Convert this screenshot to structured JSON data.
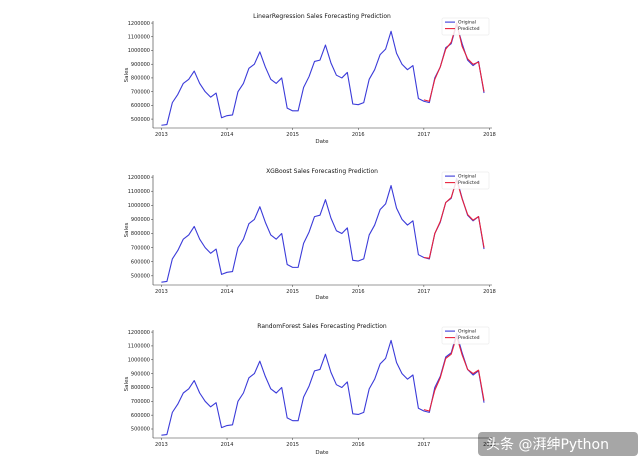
{
  "watermark": {
    "text": "头条 @湃绅Python"
  },
  "chart_data": [
    {
      "type": "line",
      "title": "LinearRegression Sales Forecasting Prediction",
      "xlabel": "Date",
      "ylabel": "Sales",
      "xlim": [
        "2012-11-15",
        "2018-01-15"
      ],
      "ylim": [
        435000,
        1215000
      ],
      "x_ticks": [
        "2013",
        "2014",
        "2015",
        "2016",
        "2017",
        "2018"
      ],
      "y_ticks": [
        500000,
        600000,
        700000,
        800000,
        900000,
        1000000,
        1100000,
        1200000
      ],
      "legend": "top-right",
      "series": [
        {
          "name": "Original",
          "color": "#3b3bd9",
          "x": [
            "2013-01",
            "2013-02",
            "2013-03",
            "2013-04",
            "2013-05",
            "2013-06",
            "2013-07",
            "2013-08",
            "2013-09",
            "2013-10",
            "2013-11",
            "2013-12",
            "2014-01",
            "2014-02",
            "2014-03",
            "2014-04",
            "2014-05",
            "2014-06",
            "2014-07",
            "2014-08",
            "2014-09",
            "2014-10",
            "2014-11",
            "2014-12",
            "2015-01",
            "2015-02",
            "2015-03",
            "2015-04",
            "2015-05",
            "2015-06",
            "2015-07",
            "2015-08",
            "2015-09",
            "2015-10",
            "2015-11",
            "2015-12",
            "2016-01",
            "2016-02",
            "2016-03",
            "2016-04",
            "2016-05",
            "2016-06",
            "2016-07",
            "2016-08",
            "2016-09",
            "2016-10",
            "2016-11",
            "2016-12",
            "2017-01",
            "2017-02",
            "2017-03",
            "2017-04",
            "2017-05",
            "2017-06",
            "2017-07",
            "2017-08",
            "2017-09",
            "2017-10",
            "2017-11",
            "2017-12"
          ],
          "y": [
            455000,
            460000,
            620000,
            680000,
            760000,
            790000,
            850000,
            760000,
            700000,
            660000,
            690000,
            510000,
            525000,
            530000,
            700000,
            760000,
            870000,
            900000,
            990000,
            880000,
            790000,
            760000,
            800000,
            580000,
            560000,
            560000,
            730000,
            810000,
            920000,
            930000,
            1040000,
            910000,
            820000,
            800000,
            840000,
            610000,
            605000,
            620000,
            790000,
            860000,
            970000,
            1010000,
            1140000,
            980000,
            900000,
            860000,
            890000,
            650000,
            630000,
            620000,
            800000,
            880000,
            1020000,
            1050000,
            1190000,
            1050000,
            930000,
            890000,
            920000,
            690000
          ]
        },
        {
          "name": "Predicted",
          "color": "#e8213a",
          "x": [
            "2017-01",
            "2017-02",
            "2017-03",
            "2017-04",
            "2017-05",
            "2017-06",
            "2017-07",
            "2017-08",
            "2017-09",
            "2017-10",
            "2017-11",
            "2017-12"
          ],
          "y": [
            640000,
            630000,
            790000,
            880000,
            1010000,
            1060000,
            1200000,
            1030000,
            940000,
            900000,
            915000,
            700000
          ]
        }
      ]
    },
    {
      "type": "line",
      "title": "XGBoost Sales Forecasting Prediction",
      "xlabel": "Date",
      "ylabel": "Sales",
      "xlim": [
        "2012-11-15",
        "2018-01-15"
      ],
      "ylim": [
        435000,
        1215000
      ],
      "x_ticks": [
        "2013",
        "2014",
        "2015",
        "2016",
        "2017",
        "2018"
      ],
      "y_ticks": [
        500000,
        600000,
        700000,
        800000,
        900000,
        1000000,
        1100000,
        1200000
      ],
      "legend": "top-right",
      "series": [
        {
          "name": "Original",
          "color": "#3b3bd9",
          "x": [
            "2013-01",
            "2013-02",
            "2013-03",
            "2013-04",
            "2013-05",
            "2013-06",
            "2013-07",
            "2013-08",
            "2013-09",
            "2013-10",
            "2013-11",
            "2013-12",
            "2014-01",
            "2014-02",
            "2014-03",
            "2014-04",
            "2014-05",
            "2014-06",
            "2014-07",
            "2014-08",
            "2014-09",
            "2014-10",
            "2014-11",
            "2014-12",
            "2015-01",
            "2015-02",
            "2015-03",
            "2015-04",
            "2015-05",
            "2015-06",
            "2015-07",
            "2015-08",
            "2015-09",
            "2015-10",
            "2015-11",
            "2015-12",
            "2016-01",
            "2016-02",
            "2016-03",
            "2016-04",
            "2016-05",
            "2016-06",
            "2016-07",
            "2016-08",
            "2016-09",
            "2016-10",
            "2016-11",
            "2016-12",
            "2017-01",
            "2017-02",
            "2017-03",
            "2017-04",
            "2017-05",
            "2017-06",
            "2017-07",
            "2017-08",
            "2017-09",
            "2017-10",
            "2017-11",
            "2017-12"
          ],
          "y": [
            455000,
            460000,
            620000,
            680000,
            760000,
            790000,
            850000,
            760000,
            700000,
            660000,
            690000,
            510000,
            525000,
            530000,
            700000,
            760000,
            870000,
            900000,
            990000,
            880000,
            790000,
            760000,
            800000,
            580000,
            560000,
            560000,
            730000,
            810000,
            920000,
            930000,
            1040000,
            910000,
            820000,
            800000,
            840000,
            610000,
            605000,
            620000,
            790000,
            860000,
            970000,
            1010000,
            1140000,
            980000,
            900000,
            860000,
            890000,
            650000,
            630000,
            620000,
            800000,
            880000,
            1020000,
            1050000,
            1190000,
            1050000,
            930000,
            890000,
            920000,
            690000
          ]
        },
        {
          "name": "Predicted",
          "color": "#e8213a",
          "x": [
            "2017-01",
            "2017-02",
            "2017-03",
            "2017-04",
            "2017-05",
            "2017-06",
            "2017-07",
            "2017-08",
            "2017-09",
            "2017-10",
            "2017-11",
            "2017-12"
          ],
          "y": [
            630000,
            625000,
            800000,
            885000,
            1020000,
            1055000,
            1180000,
            1045000,
            935000,
            895000,
            920000,
            700000
          ]
        }
      ]
    },
    {
      "type": "line",
      "title": "RandomForest Sales Forecasting Prediction",
      "xlabel": "Date",
      "ylabel": "Sales",
      "xlim": [
        "2012-11-15",
        "2018-01-15"
      ],
      "ylim": [
        435000,
        1215000
      ],
      "x_ticks": [
        "2013",
        "2014",
        "2015",
        "2016",
        "2017",
        "2018"
      ],
      "y_ticks": [
        500000,
        600000,
        700000,
        800000,
        900000,
        1000000,
        1100000,
        1200000
      ],
      "legend": "top-right",
      "series": [
        {
          "name": "Original",
          "color": "#3b3bd9",
          "x": [
            "2013-01",
            "2013-02",
            "2013-03",
            "2013-04",
            "2013-05",
            "2013-06",
            "2013-07",
            "2013-08",
            "2013-09",
            "2013-10",
            "2013-11",
            "2013-12",
            "2014-01",
            "2014-02",
            "2014-03",
            "2014-04",
            "2014-05",
            "2014-06",
            "2014-07",
            "2014-08",
            "2014-09",
            "2014-10",
            "2014-11",
            "2014-12",
            "2015-01",
            "2015-02",
            "2015-03",
            "2015-04",
            "2015-05",
            "2015-06",
            "2015-07",
            "2015-08",
            "2015-09",
            "2015-10",
            "2015-11",
            "2015-12",
            "2016-01",
            "2016-02",
            "2016-03",
            "2016-04",
            "2016-05",
            "2016-06",
            "2016-07",
            "2016-08",
            "2016-09",
            "2016-10",
            "2016-11",
            "2016-12",
            "2017-01",
            "2017-02",
            "2017-03",
            "2017-04",
            "2017-05",
            "2017-06",
            "2017-07",
            "2017-08",
            "2017-09",
            "2017-10",
            "2017-11",
            "2017-12"
          ],
          "y": [
            455000,
            460000,
            620000,
            680000,
            760000,
            790000,
            850000,
            760000,
            700000,
            660000,
            690000,
            510000,
            525000,
            530000,
            700000,
            760000,
            870000,
            900000,
            990000,
            880000,
            790000,
            760000,
            800000,
            580000,
            560000,
            560000,
            730000,
            810000,
            920000,
            930000,
            1040000,
            910000,
            820000,
            800000,
            840000,
            610000,
            605000,
            620000,
            790000,
            860000,
            970000,
            1010000,
            1140000,
            980000,
            900000,
            860000,
            890000,
            650000,
            630000,
            620000,
            800000,
            880000,
            1020000,
            1050000,
            1190000,
            1050000,
            930000,
            890000,
            920000,
            690000
          ]
        },
        {
          "name": "Predicted",
          "color": "#e8213a",
          "x": [
            "2017-01",
            "2017-02",
            "2017-03",
            "2017-04",
            "2017-05",
            "2017-06",
            "2017-07",
            "2017-08",
            "2017-09",
            "2017-10",
            "2017-11",
            "2017-12"
          ],
          "y": [
            640000,
            630000,
            780000,
            870000,
            1010000,
            1040000,
            1170000,
            1035000,
            930000,
            900000,
            925000,
            705000
          ]
        }
      ]
    }
  ]
}
